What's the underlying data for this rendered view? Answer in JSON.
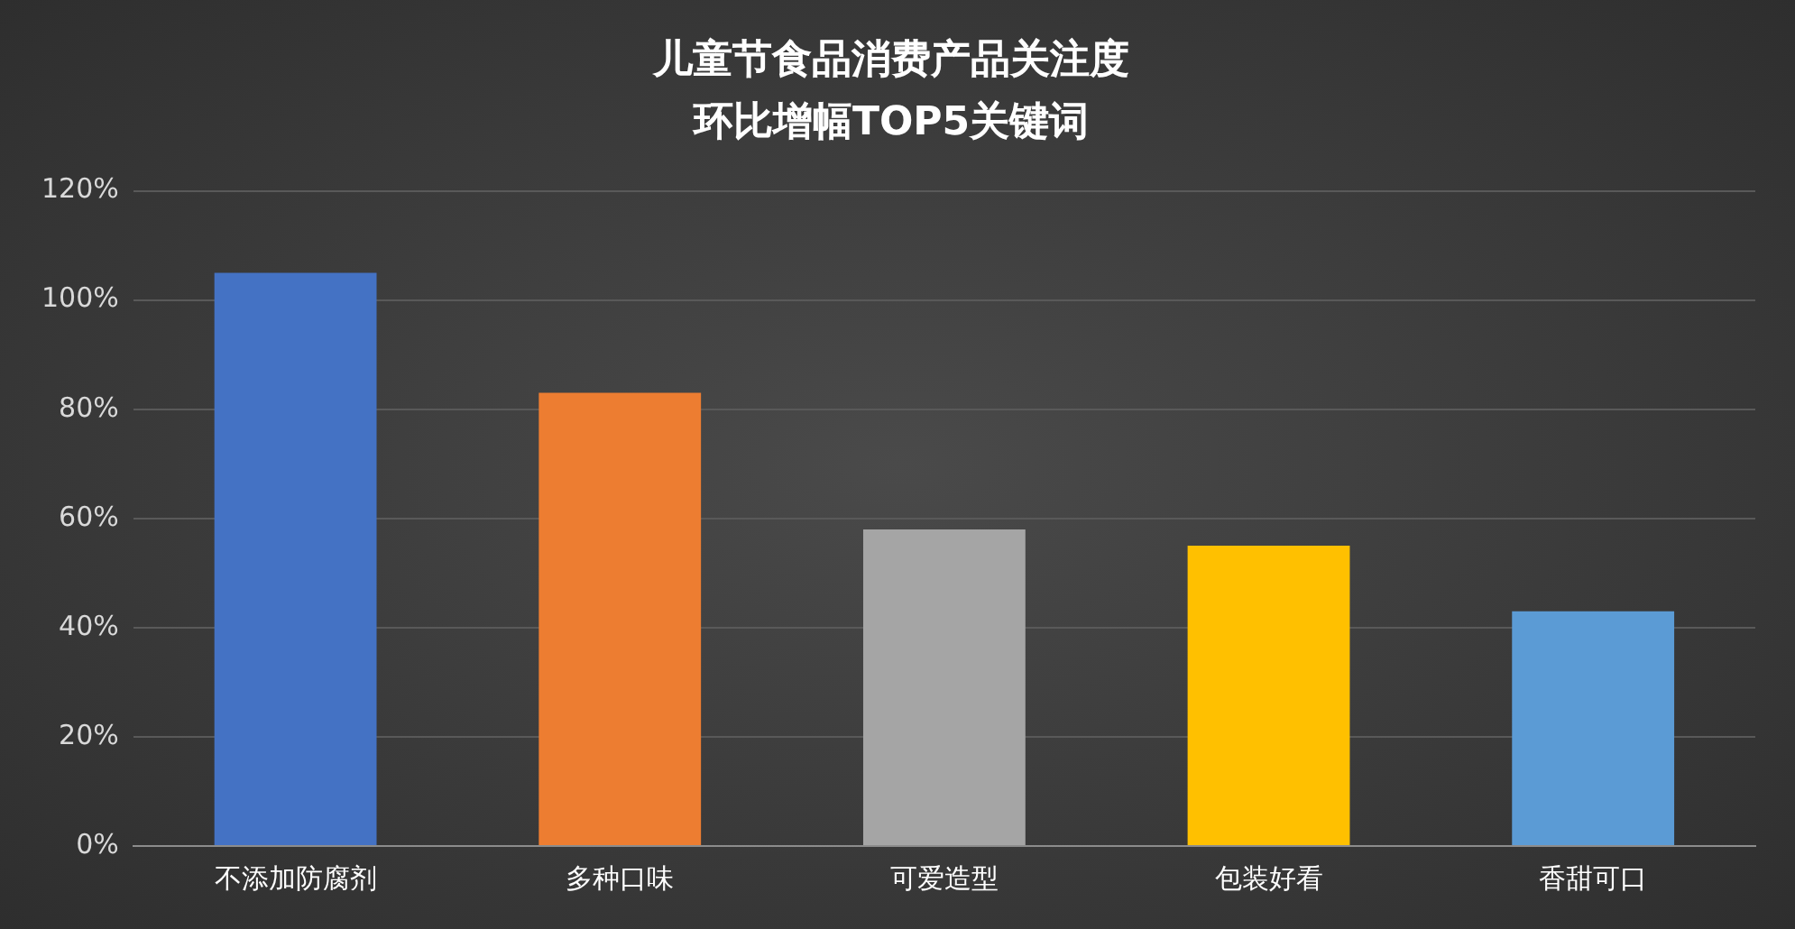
{
  "chart_data": {
    "type": "bar",
    "title": "儿童节食品消费产品关注度",
    "subtitle": "环比增幅TOP5关键词",
    "categories": [
      "不添加防腐剂",
      "多种口味",
      "可爱造型",
      "包装好看",
      "香甜可口"
    ],
    "values": [
      105,
      83,
      58,
      55,
      43
    ],
    "colors": [
      "#4472c4",
      "#ed7d31",
      "#a5a5a5",
      "#ffc000",
      "#5b9bd5"
    ],
    "ylim": [
      0,
      120
    ],
    "yticks": [
      {
        "value": 0,
        "label": "0%"
      },
      {
        "value": 20,
        "label": "20%"
      },
      {
        "value": 40,
        "label": "40%"
      },
      {
        "value": 60,
        "label": "60%"
      },
      {
        "value": 80,
        "label": "80%"
      },
      {
        "value": 100,
        "label": "100%"
      },
      {
        "value": 120,
        "label": "120%"
      }
    ],
    "grid": "y"
  }
}
